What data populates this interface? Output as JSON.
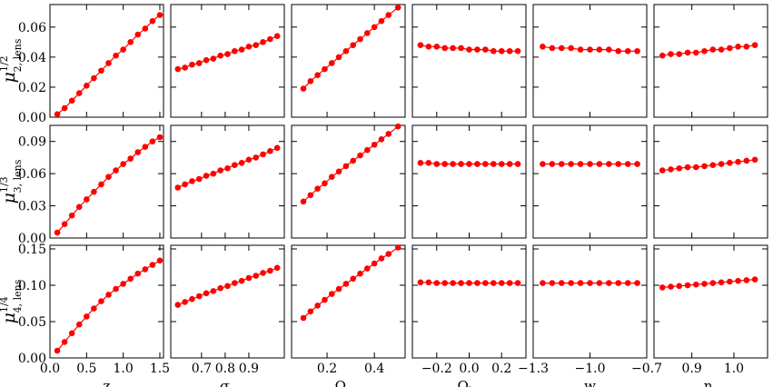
{
  "chart_data": {
    "type": "scatter",
    "marker_color": "#ff0000",
    "line_color": "#ff0000",
    "marker": "circle",
    "x_axes": [
      {
        "key": "z",
        "label": "z",
        "label_sub": "",
        "xlim": [
          0.0,
          1.55
        ],
        "ticks": [
          0.0,
          0.5,
          1.0,
          1.5
        ],
        "tick_labels": [
          "0.0",
          "0.5",
          "1.0",
          "1.5"
        ]
      },
      {
        "key": "sigma8",
        "label": "σ",
        "label_sub": "8",
        "xlim": [
          0.57,
          1.05
        ],
        "ticks": [
          0.7,
          0.8,
          0.9
        ],
        "tick_labels": [
          "0.7",
          "0.8",
          "0.9"
        ]
      },
      {
        "key": "omega_m0",
        "label": "Ω",
        "label_sub": "m0",
        "xlim": [
          0.05,
          0.53
        ],
        "ticks": [
          0.2,
          0.4
        ],
        "tick_labels": [
          "0.2",
          "0.4"
        ]
      },
      {
        "key": "omega_k0",
        "label": "Ω",
        "label_sub": "k0",
        "xlim": [
          -0.35,
          0.35
        ],
        "ticks": [
          -0.2,
          0.0,
          0.2
        ],
        "tick_labels": [
          "−0.2",
          "0.0",
          "0.2"
        ]
      },
      {
        "key": "w",
        "label": "w",
        "label_sub": "",
        "xlim": [
          -1.3,
          -0.7
        ],
        "ticks": [
          -1.3,
          -1.0,
          -0.7
        ],
        "tick_labels": [
          "−1.3",
          "−1.0",
          "−0.7"
        ]
      },
      {
        "key": "n_s",
        "label": "n",
        "label_sub": "s",
        "xlim": [
          0.81,
          1.08
        ],
        "ticks": [
          0.9,
          1.0
        ],
        "tick_labels": [
          "0.9",
          "1.0"
        ]
      }
    ],
    "rows": [
      {
        "ylabel": "μ",
        "ylabel_sup": "1/2",
        "ylabel_sub": "2, lens",
        "ylim": [
          0.0,
          0.075
        ],
        "yticks": [
          0.0,
          0.02,
          0.04,
          0.06
        ],
        "ytick_labels": [
          "0.00",
          "0.02",
          "0.04",
          "0.06"
        ],
        "panels": [
          {
            "x": [
              0.1,
              0.2,
              0.3,
              0.4,
              0.5,
              0.6,
              0.7,
              0.8,
              0.9,
              1.0,
              1.1,
              1.2,
              1.3,
              1.4,
              1.5
            ],
            "y": [
              0.002,
              0.006,
              0.011,
              0.016,
              0.021,
              0.026,
              0.031,
              0.036,
              0.041,
              0.045,
              0.05,
              0.055,
              0.059,
              0.064,
              0.068
            ]
          },
          {
            "x": [
              0.6,
              0.63,
              0.66,
              0.69,
              0.72,
              0.75,
              0.78,
              0.81,
              0.84,
              0.87,
              0.9,
              0.93,
              0.96,
              0.99,
              1.02
            ],
            "y": [
              0.032,
              0.033,
              0.035,
              0.036,
              0.038,
              0.039,
              0.041,
              0.042,
              0.044,
              0.045,
              0.047,
              0.048,
              0.05,
              0.052,
              0.054
            ]
          },
          {
            "x": [
              0.1,
              0.13,
              0.16,
              0.19,
              0.22,
              0.25,
              0.28,
              0.31,
              0.34,
              0.37,
              0.4,
              0.43,
              0.46,
              0.5
            ],
            "y": [
              0.019,
              0.024,
              0.028,
              0.032,
              0.036,
              0.04,
              0.044,
              0.048,
              0.052,
              0.056,
              0.06,
              0.064,
              0.068,
              0.073
            ]
          },
          {
            "x": [
              -0.3,
              -0.25,
              -0.2,
              -0.15,
              -0.1,
              -0.05,
              0.0,
              0.05,
              0.1,
              0.15,
              0.2,
              0.25,
              0.3
            ],
            "y": [
              0.048,
              0.047,
              0.047,
              0.046,
              0.046,
              0.046,
              0.045,
              0.045,
              0.045,
              0.044,
              0.044,
              0.044,
              0.044
            ]
          },
          {
            "x": [
              -1.25,
              -1.2,
              -1.15,
              -1.1,
              -1.05,
              -1.0,
              -0.95,
              -0.9,
              -0.85,
              -0.8,
              -0.75
            ],
            "y": [
              0.047,
              0.046,
              0.046,
              0.046,
              0.045,
              0.045,
              0.045,
              0.045,
              0.044,
              0.044,
              0.044
            ]
          },
          {
            "x": [
              0.83,
              0.85,
              0.87,
              0.89,
              0.91,
              0.93,
              0.95,
              0.97,
              0.99,
              1.01,
              1.03,
              1.05
            ],
            "y": [
              0.041,
              0.042,
              0.042,
              0.043,
              0.043,
              0.044,
              0.045,
              0.045,
              0.046,
              0.047,
              0.047,
              0.048
            ]
          }
        ]
      },
      {
        "ylabel": "μ",
        "ylabel_sup": "1/3",
        "ylabel_sub": "3, lens",
        "ylim": [
          0.0,
          0.105
        ],
        "yticks": [
          0.0,
          0.03,
          0.06,
          0.09
        ],
        "ytick_labels": [
          "0.00",
          "0.03",
          "0.06",
          "0.09"
        ],
        "panels": [
          {
            "x": [
              0.1,
              0.2,
              0.3,
              0.4,
              0.5,
              0.6,
              0.7,
              0.8,
              0.9,
              1.0,
              1.1,
              1.2,
              1.3,
              1.4,
              1.5
            ],
            "y": [
              0.005,
              0.013,
              0.021,
              0.029,
              0.036,
              0.043,
              0.05,
              0.057,
              0.063,
              0.069,
              0.074,
              0.08,
              0.085,
              0.09,
              0.094
            ]
          },
          {
            "x": [
              0.6,
              0.63,
              0.66,
              0.69,
              0.72,
              0.75,
              0.78,
              0.81,
              0.84,
              0.87,
              0.9,
              0.93,
              0.96,
              0.99,
              1.02
            ],
            "y": [
              0.047,
              0.05,
              0.053,
              0.055,
              0.058,
              0.06,
              0.063,
              0.065,
              0.068,
              0.07,
              0.073,
              0.075,
              0.078,
              0.081,
              0.084
            ]
          },
          {
            "x": [
              0.1,
              0.13,
              0.16,
              0.19,
              0.22,
              0.25,
              0.28,
              0.31,
              0.34,
              0.37,
              0.4,
              0.43,
              0.46,
              0.5
            ],
            "y": [
              0.034,
              0.04,
              0.046,
              0.051,
              0.057,
              0.062,
              0.067,
              0.072,
              0.077,
              0.082,
              0.087,
              0.092,
              0.097,
              0.104
            ]
          },
          {
            "x": [
              -0.3,
              -0.25,
              -0.2,
              -0.15,
              -0.1,
              -0.05,
              0.0,
              0.05,
              0.1,
              0.15,
              0.2,
              0.25,
              0.3
            ],
            "y": [
              0.07,
              0.07,
              0.069,
              0.069,
              0.069,
              0.069,
              0.069,
              0.069,
              0.069,
              0.069,
              0.069,
              0.069,
              0.069
            ]
          },
          {
            "x": [
              -1.25,
              -1.2,
              -1.15,
              -1.1,
              -1.05,
              -1.0,
              -0.95,
              -0.9,
              -0.85,
              -0.8,
              -0.75
            ],
            "y": [
              0.069,
              0.069,
              0.069,
              0.069,
              0.069,
              0.069,
              0.069,
              0.069,
              0.069,
              0.069,
              0.069
            ]
          },
          {
            "x": [
              0.83,
              0.85,
              0.87,
              0.89,
              0.91,
              0.93,
              0.95,
              0.97,
              0.99,
              1.01,
              1.03,
              1.05
            ],
            "y": [
              0.063,
              0.064,
              0.065,
              0.066,
              0.066,
              0.067,
              0.068,
              0.069,
              0.07,
              0.071,
              0.072,
              0.073
            ]
          }
        ]
      },
      {
        "ylabel": "μ",
        "ylabel_sup": "1/4",
        "ylabel_sub": "4, lens",
        "ylim": [
          0.0,
          0.155
        ],
        "yticks": [
          0.0,
          0.05,
          0.1,
          0.15
        ],
        "ytick_labels": [
          "0.00",
          "0.05",
          "0.10",
          "0.15"
        ],
        "panels": [
          {
            "x": [
              0.1,
              0.2,
              0.3,
              0.4,
              0.5,
              0.6,
              0.7,
              0.8,
              0.9,
              1.0,
              1.1,
              1.2,
              1.3,
              1.4,
              1.5
            ],
            "y": [
              0.01,
              0.022,
              0.034,
              0.046,
              0.057,
              0.068,
              0.078,
              0.087,
              0.095,
              0.102,
              0.109,
              0.116,
              0.122,
              0.128,
              0.134
            ]
          },
          {
            "x": [
              0.6,
              0.63,
              0.66,
              0.69,
              0.72,
              0.75,
              0.78,
              0.81,
              0.84,
              0.87,
              0.9,
              0.93,
              0.96,
              0.99,
              1.02
            ],
            "y": [
              0.073,
              0.077,
              0.081,
              0.085,
              0.089,
              0.092,
              0.096,
              0.099,
              0.103,
              0.106,
              0.11,
              0.113,
              0.117,
              0.12,
              0.124
            ]
          },
          {
            "x": [
              0.1,
              0.13,
              0.16,
              0.19,
              0.22,
              0.25,
              0.28,
              0.31,
              0.34,
              0.37,
              0.4,
              0.43,
              0.46,
              0.5
            ],
            "y": [
              0.055,
              0.064,
              0.072,
              0.08,
              0.088,
              0.095,
              0.102,
              0.109,
              0.116,
              0.123,
              0.13,
              0.137,
              0.143,
              0.152
            ]
          },
          {
            "x": [
              -0.3,
              -0.25,
              -0.2,
              -0.15,
              -0.1,
              -0.05,
              0.0,
              0.05,
              0.1,
              0.15,
              0.2,
              0.25,
              0.3
            ],
            "y": [
              0.104,
              0.104,
              0.103,
              0.103,
              0.103,
              0.103,
              0.103,
              0.103,
              0.103,
              0.103,
              0.103,
              0.103,
              0.103
            ]
          },
          {
            "x": [
              -1.25,
              -1.2,
              -1.15,
              -1.1,
              -1.05,
              -1.0,
              -0.95,
              -0.9,
              -0.85,
              -0.8,
              -0.75
            ],
            "y": [
              0.103,
              0.103,
              0.103,
              0.103,
              0.103,
              0.103,
              0.103,
              0.103,
              0.103,
              0.103,
              0.103
            ]
          },
          {
            "x": [
              0.83,
              0.85,
              0.87,
              0.89,
              0.91,
              0.93,
              0.95,
              0.97,
              0.99,
              1.01,
              1.03,
              1.05
            ],
            "y": [
              0.097,
              0.098,
              0.099,
              0.1,
              0.101,
              0.102,
              0.103,
              0.104,
              0.105,
              0.106,
              0.107,
              0.108
            ]
          }
        ]
      }
    ]
  }
}
